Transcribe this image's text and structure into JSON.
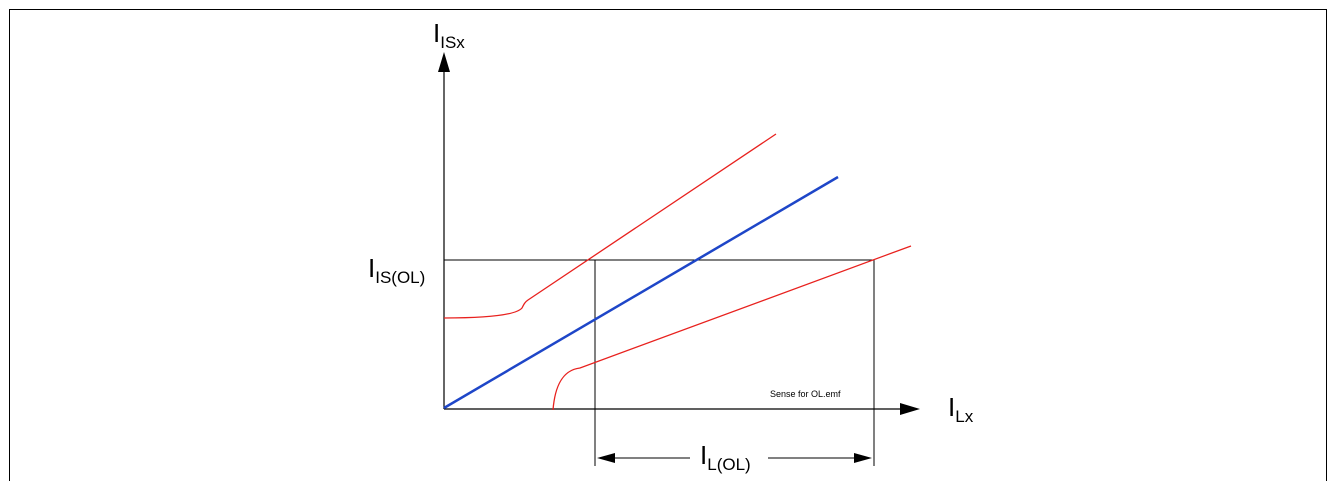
{
  "axes": {
    "y_main": "I",
    "y_sub": "ISx",
    "x_main": "I",
    "x_sub": "Lx"
  },
  "levels": {
    "is_ol_main": "I",
    "is_ol_sub": "IS(OL)",
    "l_ol_main": "I",
    "l_ol_sub": "L(OL)"
  },
  "caption": "Sense for OL.emf",
  "colors": {
    "nominal_line": "#1e46c8",
    "tolerance_lines": "#e8211e",
    "axes": "#000000"
  }
}
